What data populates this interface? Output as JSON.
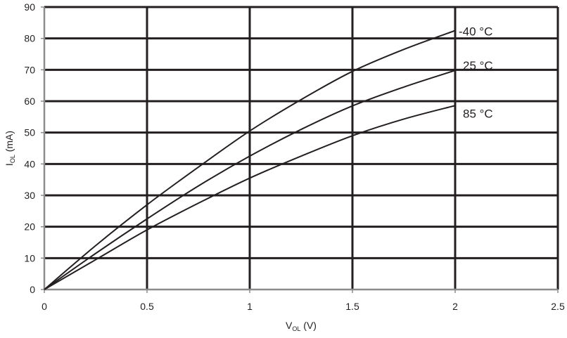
{
  "chart_data": {
    "type": "line",
    "title": "",
    "xlabel": {
      "main": "V",
      "sub": "OL",
      "unit": " (V)"
    },
    "ylabel": {
      "main": "I",
      "sub": "OL",
      "unit": " (mA)"
    },
    "xlim": [
      0,
      2.5
    ],
    "ylim": [
      0,
      90
    ],
    "xticks": [
      "0",
      "0.5",
      "1",
      "1.5",
      "2",
      "2.5"
    ],
    "xtick_values": [
      0,
      0.5,
      1,
      1.5,
      2,
      2.5
    ],
    "yticks": [
      "0",
      "10",
      "20",
      "30",
      "40",
      "50",
      "60",
      "70",
      "80",
      "90"
    ],
    "ytick_values": [
      0,
      10,
      20,
      30,
      40,
      50,
      60,
      70,
      80,
      90
    ],
    "grid": true,
    "x": [
      0,
      0.25,
      0.5,
      0.75,
      1.0,
      1.25,
      1.5,
      1.75,
      2.0
    ],
    "series": [
      {
        "name": "-40 °C",
        "values": [
          0,
          14,
          27,
          39,
          50.5,
          60.5,
          69.5,
          76.5,
          82.5
        ]
      },
      {
        "name": "25 °C",
        "values": [
          0,
          11.5,
          22.5,
          33,
          42.5,
          51,
          58.5,
          64.5,
          69.8
        ]
      },
      {
        "name": "85 °C",
        "values": [
          0,
          9.5,
          19,
          27.5,
          35.5,
          42.5,
          49,
          54.3,
          58.6
        ]
      }
    ],
    "colors": {
      "line": "#231f20",
      "grid": "#231f20",
      "axis": "#8c8c8c"
    }
  }
}
